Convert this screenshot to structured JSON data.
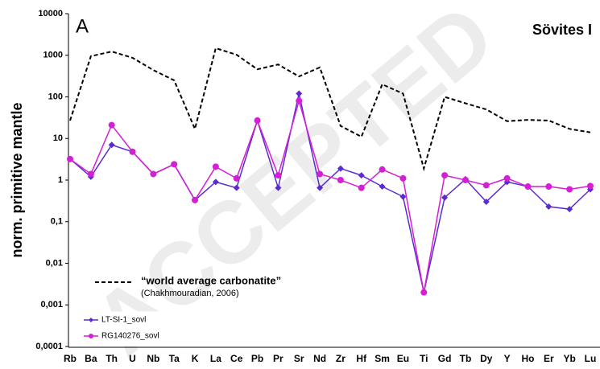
{
  "chart_data": {
    "type": "line",
    "log_y": true,
    "panel_label": "A",
    "title": "Sövites I",
    "ylabel": "norm. primitive mantle",
    "annotation": "(Chakhmouradian, 2006)",
    "watermark": "ACCEPTED",
    "categories": [
      "Rb",
      "Ba",
      "Th",
      "U",
      "Nb",
      "Ta",
      "K",
      "La",
      "Ce",
      "Pb",
      "Pr",
      "Sr",
      "Nd",
      "Zr",
      "Hf",
      "Sm",
      "Eu",
      "Ti",
      "Gd",
      "Tb",
      "Dy",
      "Y",
      "Ho",
      "Er",
      "Yb",
      "Lu"
    ],
    "ylim": [
      0.0001,
      10000
    ],
    "yticks": [
      {
        "value": 0.0001,
        "label": "0,0001"
      },
      {
        "value": 0.001,
        "label": "0,001"
      },
      {
        "value": 0.01,
        "label": "0,01"
      },
      {
        "value": 0.1,
        "label": "0,1"
      },
      1,
      10,
      100,
      1000,
      10000
    ],
    "grid": false,
    "series": [
      {
        "name": "“world average carbonatite”",
        "color": "#000000",
        "dashed": true,
        "marker": "none",
        "values": [
          27,
          950,
          1230,
          870,
          440,
          250,
          17,
          1480,
          1030,
          460,
          600,
          310,
          510,
          20,
          11,
          200,
          120,
          1.9,
          100,
          70,
          50,
          26,
          28,
          27,
          17,
          14
        ]
      },
      {
        "name": "LT-SI-1_sovl",
        "color": "#5a2ccf",
        "dashed": false,
        "marker": "diamond",
        "values": [
          3.2,
          1.2,
          7,
          4.8,
          1.4,
          2.4,
          0.33,
          0.9,
          0.65,
          27,
          0.65,
          120,
          0.65,
          1.9,
          1.3,
          0.7,
          0.4,
          0.002,
          0.38,
          1.05,
          0.3,
          0.9,
          0.7,
          0.23,
          0.2,
          0.6
        ]
      },
      {
        "name": "RG140276_sovl",
        "color": "#d41fd4",
        "dashed": false,
        "marker": "circle",
        "values": [
          3.2,
          1.4,
          21,
          4.8,
          1.4,
          2.4,
          0.33,
          2.1,
          1.1,
          27,
          1.3,
          80,
          1.4,
          1.0,
          0.65,
          1.8,
          1.1,
          0.002,
          1.3,
          1.0,
          0.75,
          1.1,
          0.7,
          0.7,
          0.6,
          0.72
        ]
      }
    ]
  }
}
